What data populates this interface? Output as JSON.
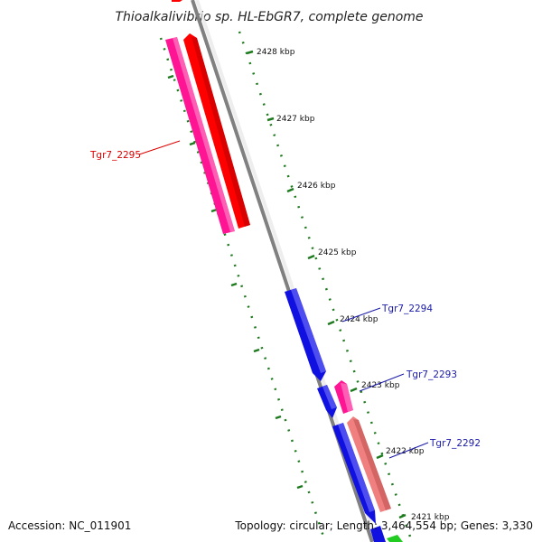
{
  "map": {
    "title": "Thioalkalivibrio sp. HL-EbGR7, complete genome",
    "accession_text": "Accession: NC_011901",
    "summary_text": "Topology: circular; Length: 3,464,554 bp; Genes: 3,330"
  },
  "colors": {
    "backbone": "#808080",
    "tick": "#1e7a1e",
    "forward_blue": "#1010e0",
    "forward_red": "#ff0000",
    "pink": "#ff1493",
    "salmon": "#f08080",
    "green": "#22cc22",
    "label_red": "#dd0000",
    "label_blue": "#1a1aa8"
  },
  "ticks": [
    {
      "label": "2428 kbp",
      "kbp": 2428
    },
    {
      "label": "2427 kbp",
      "kbp": 2427
    },
    {
      "label": "2426 kbp",
      "kbp": 2426
    },
    {
      "label": "2425 kbp",
      "kbp": 2425
    },
    {
      "label": "2424 kbp",
      "kbp": 2424
    },
    {
      "label": "2423 kbp",
      "kbp": 2423
    },
    {
      "label": "2422 kbp",
      "kbp": 2422
    },
    {
      "label": "2421 kbp",
      "kbp": 2421
    }
  ],
  "gene_labels": [
    {
      "id": "Tgr7_2295",
      "text": "Tgr7_2295",
      "color_key": "label_red"
    },
    {
      "id": "Tgr7_2294",
      "text": "Tgr7_2294",
      "color_key": "label_blue"
    },
    {
      "id": "Tgr7_2293",
      "text": "Tgr7_2293",
      "color_key": "label_blue"
    },
    {
      "id": "Tgr7_2292",
      "text": "Tgr7_2292",
      "color_key": "label_blue"
    }
  ]
}
